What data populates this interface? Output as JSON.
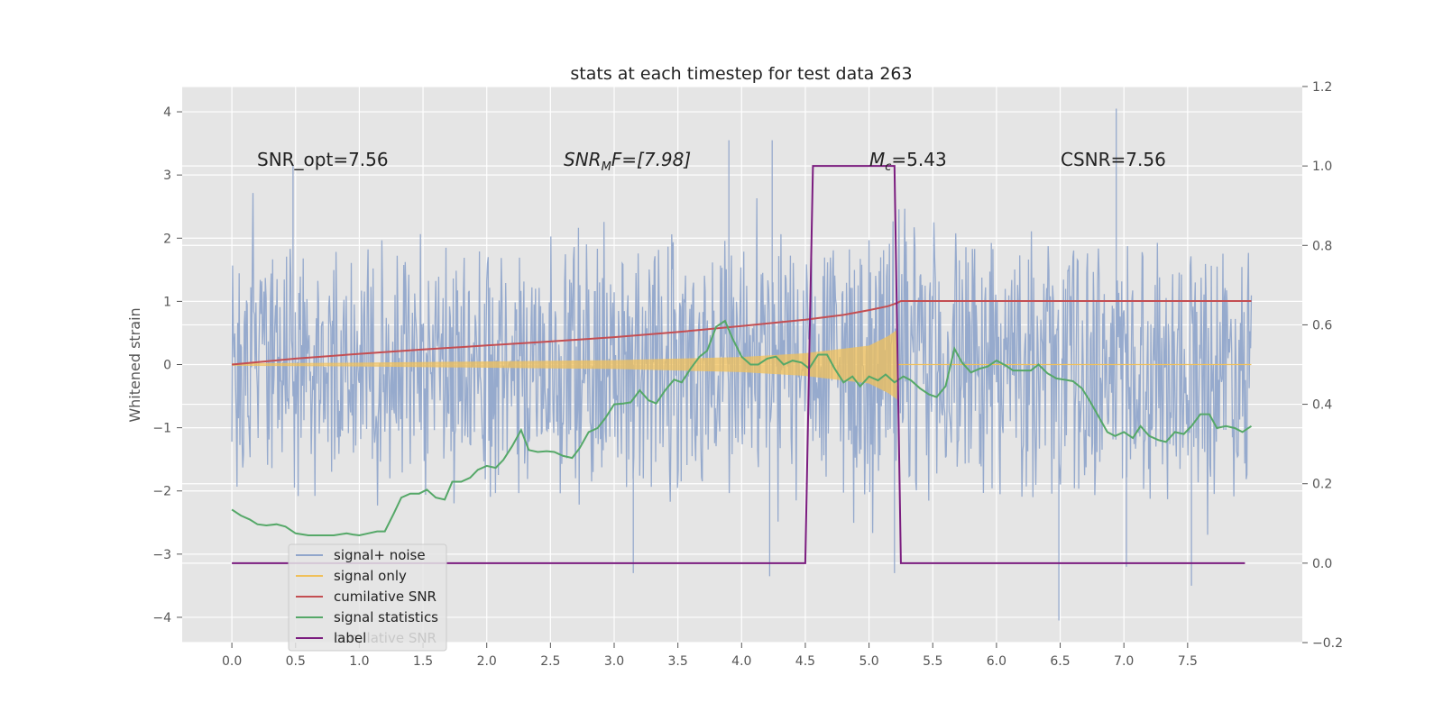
{
  "chart_data": {
    "type": "line",
    "title": "stats at each timestep for test data 263",
    "ylabel": "Whitened strain",
    "xlim": [
      -0.39,
      8.4
    ],
    "ylim": [
      -4.4,
      4.4
    ],
    "y2lim": [
      -0.2,
      1.2
    ],
    "x_ticks": [
      0.0,
      0.5,
      1.0,
      1.5,
      2.0,
      2.5,
      3.0,
      3.5,
      4.0,
      4.5,
      5.0,
      5.5,
      6.0,
      6.5,
      7.0,
      7.5
    ],
    "x_tick_labels": [
      "0.0",
      "0.5",
      "1.0",
      "1.5",
      "2.0",
      "2.5",
      "3.0",
      "3.5",
      "4.0",
      "4.5",
      "5.0",
      "5.5",
      "6.0",
      "6.5",
      "7.0",
      "7.5"
    ],
    "y_ticks": [
      -4,
      -3,
      -2,
      -1,
      0,
      1,
      2,
      3,
      4
    ],
    "y_tick_labels": [
      "−4",
      "−3",
      "−2",
      "−1",
      "0",
      "1",
      "2",
      "3",
      "4"
    ],
    "y2_ticks": [
      -0.2,
      0.0,
      0.2,
      0.4,
      0.6,
      0.8,
      1.0,
      1.2
    ],
    "y2_tick_labels": [
      "−0.2",
      "0.0",
      "0.2",
      "0.4",
      "0.6",
      "0.8",
      "1.0",
      "1.2"
    ],
    "grid": true,
    "legend_position": "lower-left",
    "annotations": {
      "snr_opt": "SNR_opt=7.56",
      "snr_mf_base": "SNR",
      "snr_mf_sub": "M",
      "snr_mf_tail": "F=[7.98]",
      "mc_base": "M",
      "mc_sub": "c",
      "mc_tail": "=5.43",
      "csnr": "CSNR=7.56"
    },
    "legend_ghost_text": "cumilative SNR",
    "series": [
      {
        "name": "signal+ noise",
        "color": "#91a6cb",
        "axis": "left",
        "x_range": [
          0.0,
          8.0
        ],
        "amplitude_envelope": [
          [
            0.0,
            2.2
          ],
          [
            2.0,
            2.3
          ],
          [
            4.0,
            2.4
          ],
          [
            5.0,
            2.6
          ],
          [
            6.0,
            2.3
          ],
          [
            8.0,
            2.2
          ]
        ],
        "peaks": [
          [
            6.94,
            4.05
          ],
          [
            3.9,
            3.55
          ],
          [
            4.24,
            3.55
          ],
          [
            7.53,
            -3.5
          ],
          [
            6.49,
            -4.05
          ],
          [
            4.22,
            -3.35
          ],
          [
            3.15,
            -3.3
          ],
          [
            5.2,
            -3.3
          ],
          [
            0.48,
            3.15
          ],
          [
            7.02,
            -3.2
          ]
        ]
      },
      {
        "name": "signal only",
        "color": "#f0c05a",
        "axis": "left",
        "x": [
          0.0,
          1.0,
          2.0,
          3.0,
          4.0,
          4.5,
          5.0,
          5.15,
          5.22
        ],
        "envelope": [
          0.02,
          0.03,
          0.05,
          0.07,
          0.12,
          0.18,
          0.3,
          0.45,
          0.55
        ]
      },
      {
        "name": "cumilative SNR",
        "color": "#c44e52",
        "axis": "right",
        "x": [
          0.0,
          0.5,
          1.0,
          1.5,
          2.0,
          2.5,
          3.0,
          3.5,
          4.0,
          4.5,
          4.8,
          5.0,
          5.15,
          5.22,
          5.25,
          8.0
        ],
        "values": [
          0.5,
          0.515,
          0.527,
          0.538,
          0.548,
          0.558,
          0.569,
          0.582,
          0.597,
          0.613,
          0.625,
          0.637,
          0.647,
          0.655,
          0.66,
          0.66
        ]
      },
      {
        "name": "signal statistics",
        "color": "#55a868",
        "axis": "right",
        "x": [
          0.0,
          0.07,
          0.14,
          0.2,
          0.27,
          0.35,
          0.42,
          0.5,
          0.6,
          0.7,
          0.8,
          0.9,
          0.95,
          1.0,
          1.07,
          1.14,
          1.2,
          1.27,
          1.33,
          1.4,
          1.47,
          1.53,
          1.6,
          1.67,
          1.73,
          1.8,
          1.87,
          1.93,
          2.0,
          2.07,
          2.13,
          2.2,
          2.27,
          2.33,
          2.4,
          2.47,
          2.53,
          2.6,
          2.67,
          2.73,
          2.8,
          2.87,
          2.93,
          3.0,
          3.07,
          3.13,
          3.2,
          3.27,
          3.33,
          3.4,
          3.47,
          3.53,
          3.6,
          3.67,
          3.73,
          3.8,
          3.87,
          3.93,
          4.0,
          4.07,
          4.13,
          4.2,
          4.27,
          4.33,
          4.4,
          4.47,
          4.53,
          4.6,
          4.67,
          4.73,
          4.8,
          4.87,
          4.93,
          5.0,
          5.07,
          5.13,
          5.2,
          5.27,
          5.33,
          5.4,
          5.47,
          5.53,
          5.6,
          5.67,
          5.73,
          5.8,
          5.87,
          5.93,
          6.0,
          6.07,
          6.13,
          6.2,
          6.27,
          6.33,
          6.4,
          6.47,
          6.53,
          6.6,
          6.67,
          6.73,
          6.8,
          6.87,
          6.93,
          7.0,
          7.07,
          7.13,
          7.2,
          7.27,
          7.33,
          7.4,
          7.47,
          7.53,
          7.6,
          7.67,
          7.73,
          7.8,
          7.87,
          7.93,
          8.0
        ],
        "values": [
          0.135,
          0.12,
          0.11,
          0.098,
          0.095,
          0.098,
          0.092,
          0.075,
          0.07,
          0.07,
          0.07,
          0.075,
          0.072,
          0.07,
          0.075,
          0.08,
          0.08,
          0.125,
          0.165,
          0.175,
          0.175,
          0.185,
          0.165,
          0.16,
          0.205,
          0.205,
          0.215,
          0.235,
          0.245,
          0.24,
          0.26,
          0.295,
          0.335,
          0.285,
          0.28,
          0.282,
          0.28,
          0.27,
          0.265,
          0.29,
          0.33,
          0.34,
          0.365,
          0.4,
          0.402,
          0.405,
          0.435,
          0.41,
          0.402,
          0.435,
          0.462,
          0.455,
          0.49,
          0.52,
          0.535,
          0.595,
          0.61,
          0.565,
          0.52,
          0.5,
          0.5,
          0.515,
          0.52,
          0.5,
          0.51,
          0.505,
          0.49,
          0.525,
          0.525,
          0.49,
          0.455,
          0.47,
          0.445,
          0.47,
          0.46,
          0.475,
          0.455,
          0.47,
          0.46,
          0.44,
          0.425,
          0.418,
          0.445,
          0.54,
          0.505,
          0.48,
          0.49,
          0.495,
          0.51,
          0.498,
          0.485,
          0.485,
          0.485,
          0.5,
          0.478,
          0.465,
          0.462,
          0.458,
          0.44,
          0.41,
          0.37,
          0.33,
          0.32,
          0.33,
          0.315,
          0.345,
          0.32,
          0.31,
          0.305,
          0.33,
          0.325,
          0.345,
          0.375,
          0.375,
          0.34,
          0.345,
          0.34,
          0.33,
          0.345
        ]
      },
      {
        "name": "label",
        "color": "#7b1c7f",
        "axis": "right",
        "x": [
          0.0,
          4.5,
          4.56,
          5.2,
          5.25,
          7.95
        ],
        "values": [
          0.0,
          0.0,
          1.0,
          1.0,
          0.0,
          0.0
        ]
      }
    ]
  }
}
